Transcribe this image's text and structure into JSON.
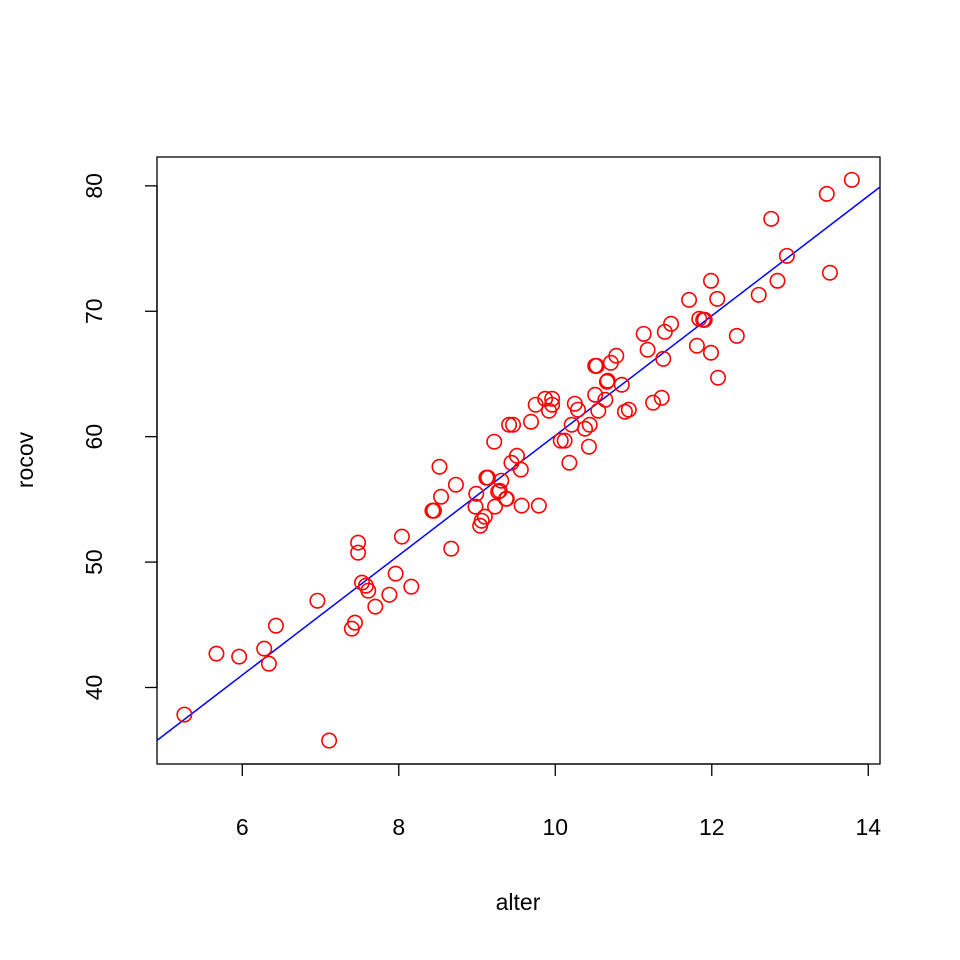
{
  "chart_data": {
    "type": "scatter",
    "title": "",
    "xlabel": "alter",
    "ylabel": "rocov",
    "xlim": [
      4.91,
      14.15
    ],
    "ylim": [
      33.9,
      82.3
    ],
    "x_ticks": [
      6,
      8,
      10,
      12,
      14
    ],
    "y_ticks": [
      40,
      50,
      60,
      70,
      80
    ],
    "grid": false,
    "legend": "none",
    "point_color": "#ff0000",
    "marker": "open-circle",
    "fit_line": {
      "type": "linear",
      "intercept": 12.34,
      "slope": 4.775,
      "color": "#0000ff"
    },
    "points": [
      [
        5.26,
        37.84
      ],
      [
        5.67,
        42.7
      ],
      [
        5.96,
        42.46
      ],
      [
        6.28,
        43.1
      ],
      [
        6.34,
        41.9
      ],
      [
        6.43,
        44.93
      ],
      [
        6.96,
        46.92
      ],
      [
        7.11,
        35.77
      ],
      [
        7.4,
        44.69
      ],
      [
        7.44,
        45.17
      ],
      [
        7.48,
        51.55
      ],
      [
        7.48,
        50.75
      ],
      [
        7.53,
        48.36
      ],
      [
        7.58,
        48.12
      ],
      [
        7.61,
        47.72
      ],
      [
        7.7,
        46.45
      ],
      [
        7.88,
        47.4
      ],
      [
        7.96,
        49.08
      ],
      [
        8.04,
        52.03
      ],
      [
        8.16,
        48.04
      ],
      [
        8.43,
        54.1
      ],
      [
        8.45,
        54.1
      ],
      [
        8.52,
        57.6
      ],
      [
        8.54,
        55.21
      ],
      [
        8.67,
        51.07
      ],
      [
        8.73,
        56.17
      ],
      [
        8.98,
        54.42
      ],
      [
        8.99,
        55.45
      ],
      [
        9.04,
        52.9
      ],
      [
        9.06,
        53.3
      ],
      [
        9.1,
        53.62
      ],
      [
        9.12,
        56.73
      ],
      [
        9.14,
        56.73
      ],
      [
        9.22,
        59.6
      ],
      [
        9.23,
        54.42
      ],
      [
        9.27,
        55.61
      ],
      [
        9.29,
        55.69
      ],
      [
        9.31,
        56.49
      ],
      [
        9.37,
        55.05
      ],
      [
        9.38,
        55.05
      ],
      [
        9.41,
        60.95
      ],
      [
        9.44,
        57.92
      ],
      [
        9.46,
        60.95
      ],
      [
        9.51,
        58.48
      ],
      [
        9.56,
        57.37
      ],
      [
        9.57,
        54.5
      ],
      [
        9.69,
        61.19
      ],
      [
        9.75,
        62.55
      ],
      [
        9.79,
        54.5
      ],
      [
        9.87,
        63.02
      ],
      [
        9.92,
        62.07
      ],
      [
        9.96,
        63.02
      ],
      [
        9.96,
        62.55
      ],
      [
        10.07,
        59.68
      ],
      [
        10.12,
        59.68
      ],
      [
        10.18,
        57.92
      ],
      [
        10.21,
        60.95
      ],
      [
        10.25,
        62.63
      ],
      [
        10.29,
        62.15
      ],
      [
        10.38,
        60.63
      ],
      [
        10.43,
        59.2
      ],
      [
        10.44,
        60.95
      ],
      [
        10.51,
        63.34
      ],
      [
        10.51,
        65.65
      ],
      [
        10.53,
        65.65
      ],
      [
        10.55,
        62.07
      ],
      [
        10.64,
        62.94
      ],
      [
        10.66,
        64.38
      ],
      [
        10.67,
        64.46
      ],
      [
        10.71,
        65.89
      ],
      [
        10.78,
        66.45
      ],
      [
        10.85,
        64.14
      ],
      [
        10.89,
        61.99
      ],
      [
        10.94,
        62.15
      ],
      [
        11.13,
        68.2
      ],
      [
        11.18,
        66.93
      ],
      [
        11.25,
        62.71
      ],
      [
        11.36,
        63.1
      ],
      [
        11.38,
        66.21
      ],
      [
        11.4,
        68.36
      ],
      [
        11.48,
        69.0
      ],
      [
        11.71,
        70.91
      ],
      [
        11.81,
        67.25
      ],
      [
        11.84,
        69.4
      ],
      [
        11.89,
        69.32
      ],
      [
        11.91,
        69.32
      ],
      [
        11.99,
        72.43
      ],
      [
        11.99,
        66.69
      ],
      [
        12.07,
        70.99
      ],
      [
        12.08,
        64.7
      ],
      [
        12.32,
        68.04
      ],
      [
        12.6,
        71.31
      ],
      [
        12.76,
        77.37
      ],
      [
        12.84,
        72.43
      ],
      [
        12.96,
        74.42
      ],
      [
        13.47,
        79.36
      ],
      [
        13.51,
        73.07
      ],
      [
        13.79,
        80.48
      ]
    ]
  }
}
